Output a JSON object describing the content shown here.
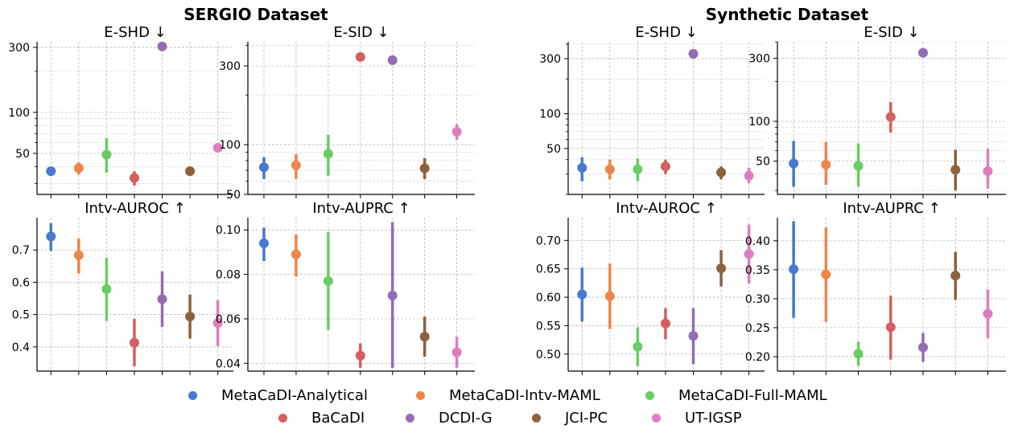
{
  "colors": {
    "analytical": "#4878d0",
    "intv_maml": "#ee854a",
    "full_maml": "#6acc64",
    "bacadi": "#d65f5f",
    "dcdi": "#956cb4",
    "jci": "#8c613c",
    "utigsp": "#dc7ec0"
  },
  "group_titles": [
    "SERGIO Dataset",
    "Synthetic Dataset"
  ],
  "legend": [
    {
      "label": "MetaCaDI-Analytical",
      "color_key": "analytical"
    },
    {
      "label": "MetaCaDI-Intv-MAML",
      "color_key": "intv_maml"
    },
    {
      "label": "MetaCaDI-Full-MAML",
      "color_key": "full_maml"
    },
    {
      "label": "BaCaDI",
      "color_key": "bacadi"
    },
    {
      "label": "DCDI-G",
      "color_key": "dcdi"
    },
    {
      "label": "JCI-PC",
      "color_key": "jci"
    },
    {
      "label": "UT-IGSP",
      "color_key": "utigsp"
    }
  ],
  "chart_data": [
    {
      "type": "scatter",
      "group": "SERGIO Dataset",
      "title": "E-SHD ↓",
      "scale": "log",
      "ylim": [
        25,
        330
      ],
      "yticks": [
        50,
        100,
        300
      ],
      "yticklabels": [
        "50",
        "100",
        "300"
      ],
      "methods": [
        "analytical",
        "intv_maml",
        "full_maml",
        "bacadi",
        "dcdi",
        "jci",
        "utigsp"
      ],
      "values": [
        37,
        39,
        49,
        33,
        305,
        37,
        55
      ],
      "lower": [
        null,
        35,
        36,
        29,
        null,
        null,
        51
      ],
      "upper": [
        null,
        43,
        65,
        37,
        null,
        null,
        59
      ]
    },
    {
      "type": "scatter",
      "group": "SERGIO Dataset",
      "title": "E-SID ↓",
      "scale": "log",
      "ylim": [
        50,
        420
      ],
      "yticks": [
        50,
        100,
        300
      ],
      "yticklabels": [
        "50",
        "100",
        "300"
      ],
      "methods": [
        "analytical",
        "intv_maml",
        "full_maml",
        "bacadi",
        "dcdi",
        "jci",
        "utigsp"
      ],
      "values": [
        73,
        75,
        88,
        340,
        325,
        72,
        120
      ],
      "lower": [
        62,
        62,
        65,
        null,
        null,
        62,
        107
      ],
      "upper": [
        84,
        88,
        115,
        null,
        null,
        83,
        133
      ]
    },
    {
      "type": "scatter",
      "group": "Synthetic Dataset",
      "title": "E-SHD ↓",
      "scale": "log",
      "ylim": [
        20,
        420
      ],
      "yticks": [
        50,
        100,
        300
      ],
      "yticklabels": [
        "50",
        "100",
        "300"
      ],
      "methods": [
        "analytical",
        "intv_maml",
        "full_maml",
        "bacadi",
        "dcdi",
        "jci",
        "utigsp"
      ],
      "values": [
        34,
        33,
        33,
        35,
        330,
        31,
        29
      ],
      "lower": [
        26,
        27,
        26,
        30,
        null,
        27,
        25
      ],
      "upper": [
        42,
        40,
        41,
        40,
        null,
        35,
        34
      ]
    },
    {
      "type": "scatter",
      "group": "Synthetic Dataset",
      "title": "E-SID ↓",
      "scale": "log",
      "ylim": [
        28,
        400
      ],
      "yticks": [
        50,
        100,
        300
      ],
      "yticklabels": [
        "50",
        "100",
        "300"
      ],
      "methods": [
        "analytical",
        "intv_maml",
        "full_maml",
        "bacadi",
        "dcdi",
        "jci",
        "utigsp"
      ],
      "values": [
        48,
        47,
        46,
        108,
        330,
        43,
        42
      ],
      "lower": [
        32,
        33,
        32,
        82,
        null,
        30,
        31
      ],
      "upper": [
        71,
        70,
        68,
        140,
        null,
        61,
        62
      ]
    },
    {
      "type": "scatter",
      "group": "SERGIO Dataset",
      "title": "Intv-AUROC ↑",
      "scale": "linear",
      "ylim": [
        0.325,
        0.8
      ],
      "yticks": [
        0.4,
        0.5,
        0.6,
        0.7
      ],
      "yticklabels": [
        "0.4",
        "0.5",
        "0.6",
        "0.7"
      ],
      "methods": [
        "analytical",
        "intv_maml",
        "full_maml",
        "bacadi",
        "dcdi",
        "jci",
        "utigsp"
      ],
      "values": [
        0.742,
        0.684,
        0.579,
        0.413,
        0.548,
        0.494,
        0.474
      ],
      "lower": [
        0.697,
        0.627,
        0.48,
        0.34,
        0.462,
        0.426,
        0.403
      ],
      "upper": [
        0.783,
        0.736,
        0.676,
        0.487,
        0.634,
        0.562,
        0.545
      ]
    },
    {
      "type": "scatter",
      "group": "SERGIO Dataset",
      "title": "Intv-AUPRC ↑",
      "scale": "linear",
      "ylim": [
        0.0365,
        0.1055
      ],
      "yticks": [
        0.04,
        0.06,
        0.08,
        0.1
      ],
      "yticklabels": [
        "0.04",
        "0.06",
        "0.08",
        "0.10"
      ],
      "methods": [
        "analytical",
        "intv_maml",
        "full_maml",
        "bacadi",
        "dcdi",
        "jci",
        "utigsp"
      ],
      "values": [
        0.094,
        0.089,
        0.077,
        0.0435,
        0.0705,
        0.052,
        0.045
      ],
      "lower": [
        0.086,
        0.079,
        0.055,
        0.038,
        0.038,
        0.043,
        0.038
      ],
      "upper": [
        0.101,
        0.098,
        0.099,
        0.049,
        0.1035,
        0.061,
        0.052
      ]
    },
    {
      "type": "scatter",
      "group": "Synthetic Dataset",
      "title": "Intv-AUROC ↑",
      "scale": "linear",
      "ylim": [
        0.47,
        0.74
      ],
      "yticks": [
        0.5,
        0.55,
        0.6,
        0.65,
        0.7
      ],
      "yticklabels": [
        "0.50",
        "0.55",
        "0.60",
        "0.65",
        "0.70"
      ],
      "methods": [
        "analytical",
        "intv_maml",
        "full_maml",
        "bacadi",
        "dcdi",
        "jci",
        "utigsp"
      ],
      "values": [
        0.605,
        0.602,
        0.513,
        0.554,
        0.532,
        0.651,
        0.676
      ],
      "lower": [
        0.557,
        0.544,
        0.479,
        0.526,
        0.482,
        0.619,
        0.624
      ],
      "upper": [
        0.652,
        0.659,
        0.547,
        0.581,
        0.581,
        0.683,
        0.728
      ]
    },
    {
      "type": "scatter",
      "group": "Synthetic Dataset",
      "title": "Intv-AUPRC ↑",
      "scale": "linear",
      "ylim": [
        0.175,
        0.44
      ],
      "yticks": [
        0.2,
        0.25,
        0.3,
        0.35,
        0.4
      ],
      "yticklabels": [
        "0.20",
        "0.25",
        "0.30",
        "0.35",
        "0.40"
      ],
      "methods": [
        "analytical",
        "intv_maml",
        "full_maml",
        "bacadi",
        "dcdi",
        "jci",
        "utigsp"
      ],
      "values": [
        0.351,
        0.342,
        0.205,
        0.251,
        0.216,
        0.34,
        0.274
      ],
      "lower": [
        0.267,
        0.26,
        0.184,
        0.195,
        0.191,
        0.298,
        0.232
      ],
      "upper": [
        0.434,
        0.423,
        0.226,
        0.305,
        0.241,
        0.381,
        0.316
      ]
    }
  ]
}
